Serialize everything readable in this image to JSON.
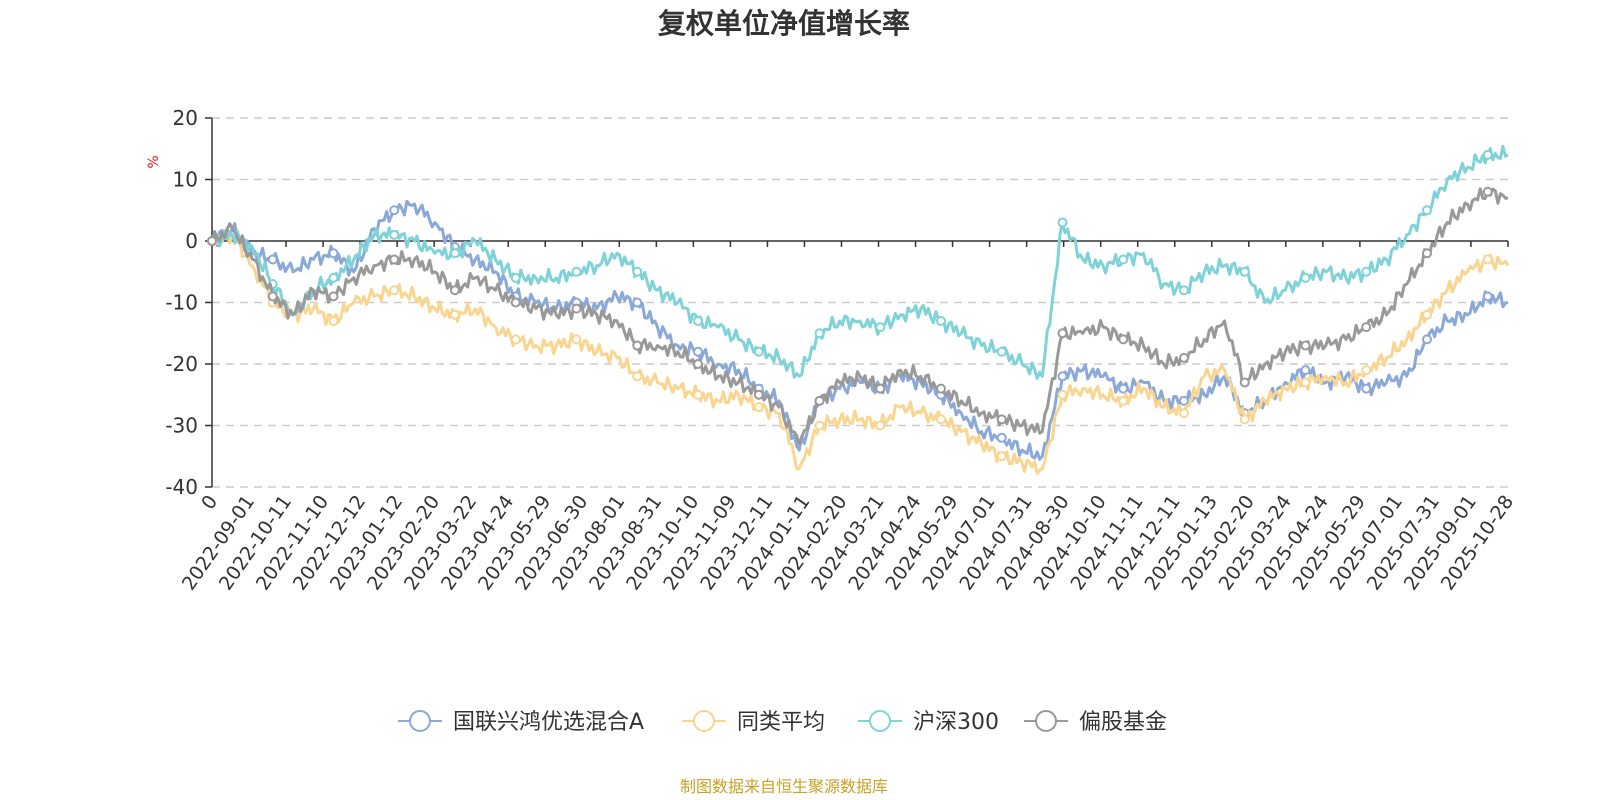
{
  "chart_data": {
    "type": "line",
    "title": "复权单位净值增长率",
    "ylabel": "%",
    "ylim": [
      -40,
      20
    ],
    "yticks": [
      20,
      10,
      0,
      -10,
      -20,
      -30,
      -40
    ],
    "xlabel": "",
    "x_tick_labels": [
      "0",
      "2022-09-01",
      "2022-10-11",
      "2022-11-10",
      "2022-12-12",
      "2023-01-12",
      "2023-02-20",
      "2023-03-22",
      "2023-04-24",
      "2023-05-29",
      "2023-06-30",
      "2023-08-01",
      "2023-08-31",
      "2023-10-10",
      "2023-11-09",
      "2023-12-11",
      "2024-01-11",
      "2024-02-20",
      "2024-03-21",
      "2024-04-24",
      "2024-05-29",
      "2024-07-01",
      "2024-07-31",
      "2024-08-30",
      "2024-10-10",
      "2024-11-11",
      "2024-12-11",
      "2025-01-13",
      "2025-02-20",
      "2025-03-24",
      "2025-04-24",
      "2025-05-29",
      "2025-07-01",
      "2025-07-31",
      "2025-09-01",
      "2025-10-28"
    ],
    "grid": true,
    "legend_position": "bottom-center",
    "series": [
      {
        "name": "国联兴鸿优选混合A",
        "color": "#8aa8d8",
        "values": [
          0,
          2,
          -2,
          -3,
          -5,
          -3,
          -2,
          -5,
          2,
          5,
          6,
          3,
          -1,
          -3,
          -5,
          -9,
          -10,
          -11,
          -10,
          -11,
          -9,
          -10,
          -14,
          -17,
          -18,
          -20,
          -21,
          -24,
          -26,
          -34,
          -26,
          -24,
          -23,
          -24,
          -22,
          -23,
          -25,
          -28,
          -31,
          -32,
          -34,
          -35,
          -22,
          -21,
          -22,
          -24,
          -23,
          -26,
          -26,
          -25,
          -22,
          -28,
          -26,
          -23,
          -21,
          -23,
          -22,
          -24,
          -23,
          -22,
          -16,
          -13,
          -12,
          -9,
          -10
        ]
      },
      {
        "name": "同类平均",
        "color": "#f9d58f",
        "values": [
          0,
          1,
          -4,
          -10,
          -12,
          -11,
          -13,
          -10,
          -9,
          -8,
          -9,
          -11,
          -12,
          -11,
          -14,
          -16,
          -17,
          -17,
          -16,
          -18,
          -19,
          -22,
          -23,
          -24,
          -25,
          -26,
          -25,
          -27,
          -28,
          -37,
          -30,
          -29,
          -29,
          -30,
          -27,
          -28,
          -29,
          -31,
          -33,
          -35,
          -36,
          -37,
          -25,
          -24,
          -25,
          -26,
          -24,
          -27,
          -28,
          -22,
          -21,
          -29,
          -26,
          -24,
          -23,
          -22,
          -23,
          -21,
          -19,
          -16,
          -12,
          -8,
          -5,
          -3,
          -4
        ]
      },
      {
        "name": "沪深300",
        "color": "#7fd3d8",
        "values": [
          0,
          1,
          -1,
          -7,
          -12,
          -8,
          -6,
          -3,
          1,
          1,
          0,
          -2,
          -2,
          0,
          -3,
          -6,
          -6,
          -6,
          -5,
          -4,
          -2,
          -5,
          -8,
          -10,
          -13,
          -14,
          -16,
          -18,
          -19,
          -22,
          -15,
          -13,
          -13,
          -14,
          -12,
          -11,
          -13,
          -15,
          -17,
          -18,
          -20,
          -22,
          3,
          -3,
          -4,
          -3,
          -2,
          -7,
          -8,
          -5,
          -4,
          -5,
          -10,
          -8,
          -6,
          -5,
          -6,
          -5,
          -3,
          1,
          5,
          10,
          12,
          14,
          14
        ]
      },
      {
        "name": "偏股基金",
        "color": "#999999",
        "values": [
          0,
          2,
          -3,
          -9,
          -12,
          -8,
          -9,
          -6,
          -4,
          -3,
          -3,
          -5,
          -8,
          -6,
          -8,
          -10,
          -11,
          -12,
          -11,
          -12,
          -13,
          -17,
          -17,
          -18,
          -20,
          -22,
          -23,
          -25,
          -27,
          -33,
          -26,
          -23,
          -22,
          -24,
          -21,
          -22,
          -24,
          -26,
          -28,
          -29,
          -30,
          -31,
          -15,
          -15,
          -14,
          -16,
          -17,
          -20,
          -19,
          -16,
          -13,
          -23,
          -20,
          -18,
          -17,
          -17,
          -16,
          -14,
          -12,
          -7,
          -2,
          3,
          6,
          8,
          7
        ]
      }
    ]
  },
  "source_note": "制图数据来自恒生聚源数据库"
}
